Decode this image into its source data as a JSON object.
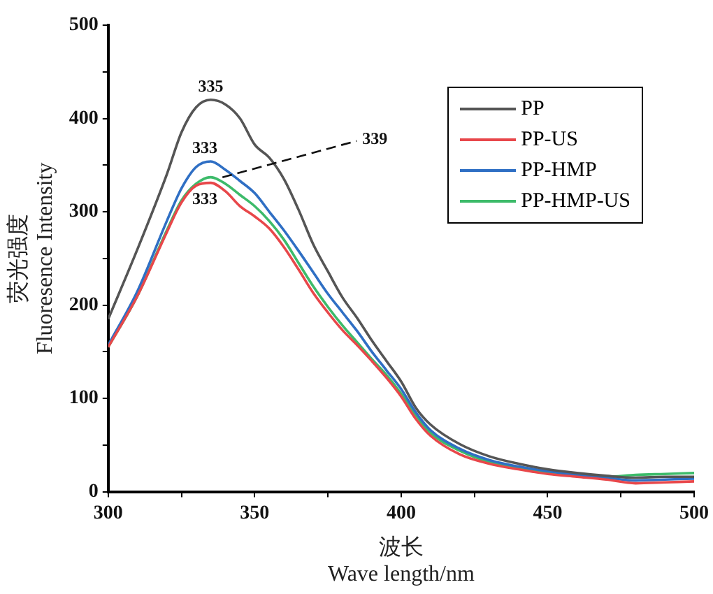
{
  "chart_data": {
    "type": "line",
    "xlabel": "波长\nWave length/nm",
    "ylabel": "荧光强度\nFluoresence Intensity",
    "xlim": [
      300,
      500
    ],
    "ylim": [
      0,
      500
    ],
    "xticks": [
      300,
      {
        "value": 325,
        "label": null
      },
      350,
      {
        "value": 375,
        "label": null
      },
      400,
      {
        "value": 425,
        "label": null
      },
      450,
      {
        "value": 475,
        "label": null
      },
      500
    ],
    "yticks": [
      0,
      {
        "value": 50,
        "label": null
      },
      100,
      {
        "value": 150,
        "label": null
      },
      200,
      {
        "value": 250,
        "label": null
      },
      300,
      {
        "value": 350,
        "label": null
      },
      400,
      {
        "value": 450,
        "label": null
      },
      500
    ],
    "grid": false,
    "legend": "top right",
    "marker": "none",
    "line_style": "solid",
    "x": [
      300,
      310,
      320,
      325,
      330,
      335,
      340,
      345,
      350,
      355,
      360,
      365,
      370,
      375,
      380,
      385,
      390,
      395,
      400,
      405,
      410,
      420,
      430,
      440,
      450,
      460,
      470,
      480,
      490,
      500
    ],
    "series": [
      {
        "name": "PP",
        "color": "#555555",
        "values": [
          185,
          260,
          340,
          385,
          412,
          420,
          415,
          400,
          372,
          358,
          335,
          302,
          265,
          236,
          208,
          186,
          162,
          140,
          118,
          90,
          72,
          51,
          38,
          30,
          24,
          20,
          17,
          15,
          16,
          16
        ]
      },
      {
        "name": "PP-US",
        "color": "#e8474a",
        "values": [
          155,
          210,
          278,
          310,
          328,
          331,
          322,
          306,
          295,
          282,
          262,
          238,
          213,
          192,
          173,
          157,
          140,
          122,
          102,
          78,
          60,
          40,
          30,
          24,
          19,
          16,
          13,
          9,
          10,
          11
        ]
      },
      {
        "name": "PP-HMP",
        "color": "#2f6fc4",
        "values": [
          157,
          215,
          290,
          325,
          348,
          354,
          345,
          333,
          320,
          300,
          280,
          258,
          235,
          212,
          192,
          172,
          150,
          130,
          110,
          85,
          66,
          46,
          34,
          27,
          22,
          18,
          15,
          12,
          13,
          14
        ]
      },
      {
        "name": "PP-HMP-US",
        "color": "#3dbb6a",
        "values": [
          155,
          210,
          280,
          312,
          330,
          337,
          330,
          318,
          306,
          290,
          270,
          245,
          220,
          198,
          178,
          160,
          142,
          125,
          105,
          82,
          63,
          44,
          32,
          26,
          21,
          17,
          16,
          18,
          19,
          20
        ]
      }
    ],
    "annotations": [
      {
        "text": "335",
        "x": 335,
        "y": 420
      },
      {
        "text": "333",
        "x": 333,
        "y": 354
      },
      {
        "text": "333",
        "x": 333,
        "y": 331
      },
      {
        "text": "339",
        "x": 339,
        "y": 337
      }
    ]
  }
}
